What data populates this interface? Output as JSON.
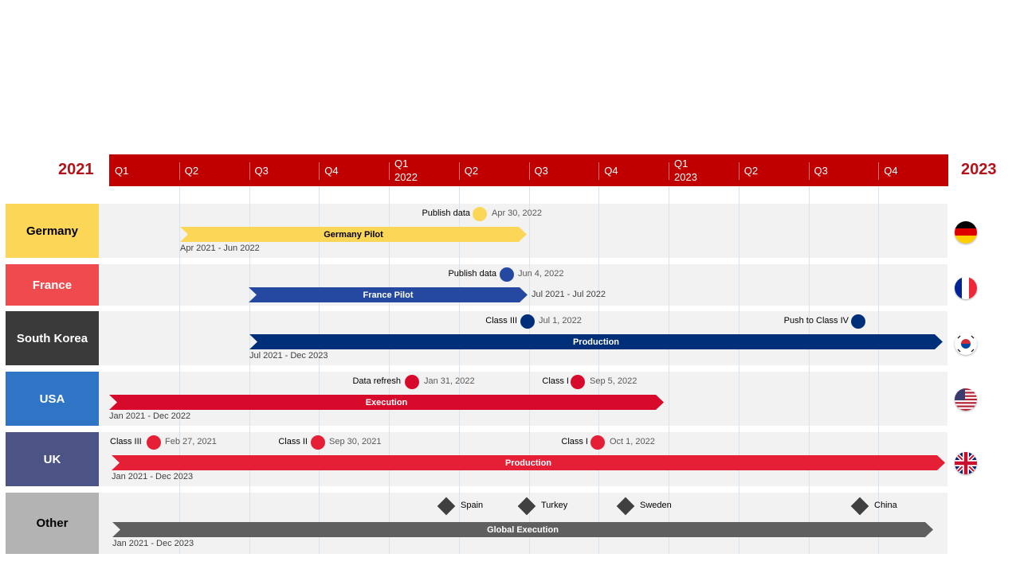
{
  "timeline": {
    "start_year": "2021",
    "end_year": "2023",
    "quarters": [
      {
        "label": "Q1",
        "year": ""
      },
      {
        "label": "Q2",
        "year": ""
      },
      {
        "label": "Q3",
        "year": ""
      },
      {
        "label": "Q4",
        "year": ""
      },
      {
        "label": "Q1",
        "year": "2022"
      },
      {
        "label": "Q2",
        "year": ""
      },
      {
        "label": "Q3",
        "year": ""
      },
      {
        "label": "Q4",
        "year": ""
      },
      {
        "label": "Q1",
        "year": "2023"
      },
      {
        "label": "Q2",
        "year": ""
      },
      {
        "label": "Q3",
        "year": ""
      },
      {
        "label": "Q4",
        "year": ""
      }
    ]
  },
  "rows": [
    {
      "name": "Germany",
      "label_bg": "#fcd757",
      "label_color": "#000000",
      "flag": "germany-flag-icon",
      "bar": {
        "label": "Germany Pilot",
        "range": "Apr 2021 - Jun 2022",
        "color": "#fcd757",
        "text_color": "#000000"
      },
      "milestones": [
        {
          "label": "Publish data",
          "date": "Apr 30, 2022",
          "color": "#fcd757"
        }
      ]
    },
    {
      "name": "France",
      "label_bg": "#ef4b4f",
      "label_color": "#ffffff",
      "flag": "france-flag-icon",
      "bar": {
        "label": "France Pilot",
        "range": "Jul 2021 - Jul 2022",
        "color": "#2549a0",
        "text_color": "#ffffff"
      },
      "milestones": [
        {
          "label": "Publish data",
          "date": "Jun 4, 2022",
          "color": "#2549a0"
        }
      ]
    },
    {
      "name": "South Korea",
      "label_bg": "#3a3a3a",
      "label_color": "#ffffff",
      "flag": "south-korea-flag-icon",
      "bar": {
        "label": "Production",
        "range": "Jul 2021 - Dec 2023",
        "color": "#002f7a",
        "text_color": "#ffffff"
      },
      "milestones": [
        {
          "label": "Class III",
          "date": "Jul 1, 2022",
          "color": "#002f7a"
        },
        {
          "label": "Push to Class IV",
          "date": "",
          "color": "#002f7a"
        }
      ]
    },
    {
      "name": "USA",
      "label_bg": "#2f74c5",
      "label_color": "#ffffff",
      "flag": "usa-flag-icon",
      "bar": {
        "label": "Execution",
        "range": "Jan 2021 - Dec 2022",
        "color": "#d80a2b",
        "text_color": "#ffffff"
      },
      "milestones": [
        {
          "label": "Data refresh",
          "date": "Jan 31, 2022",
          "color": "#d80a2b"
        },
        {
          "label": "Class I",
          "date": "Sep 5, 2022",
          "color": "#d80a2b"
        }
      ]
    },
    {
      "name": "UK",
      "label_bg": "#4b5485",
      "label_color": "#ffffff",
      "flag": "uk-flag-icon",
      "bar": {
        "label": "Production",
        "range": "Jan 2021 - Dec 2023",
        "color": "#e51f36",
        "text_color": "#ffffff"
      },
      "milestones": [
        {
          "label": "Class III",
          "date": "Feb 27, 2021",
          "color": "#e51f36"
        },
        {
          "label": "Class II",
          "date": "Sep 30, 2021",
          "color": "#e51f36"
        },
        {
          "label": "Class I",
          "date": "Oct 1, 2022",
          "color": "#e51f36"
        }
      ]
    },
    {
      "name": "Other",
      "label_bg": "#b3b3b3",
      "label_color": "#000000",
      "flag": "",
      "bar": {
        "label": "Global  Execution",
        "range": "Jan 2021 - Dec 2023",
        "color": "#5f5f5f",
        "text_color": "#ffffff"
      },
      "milestones": [
        {
          "label": "Spain",
          "date": "",
          "color": "#404040"
        },
        {
          "label": "Turkey",
          "date": "",
          "color": "#404040"
        },
        {
          "label": "Sweden",
          "date": "",
          "color": "#404040"
        },
        {
          "label": "China",
          "date": "",
          "color": "#404040"
        }
      ]
    }
  ]
}
